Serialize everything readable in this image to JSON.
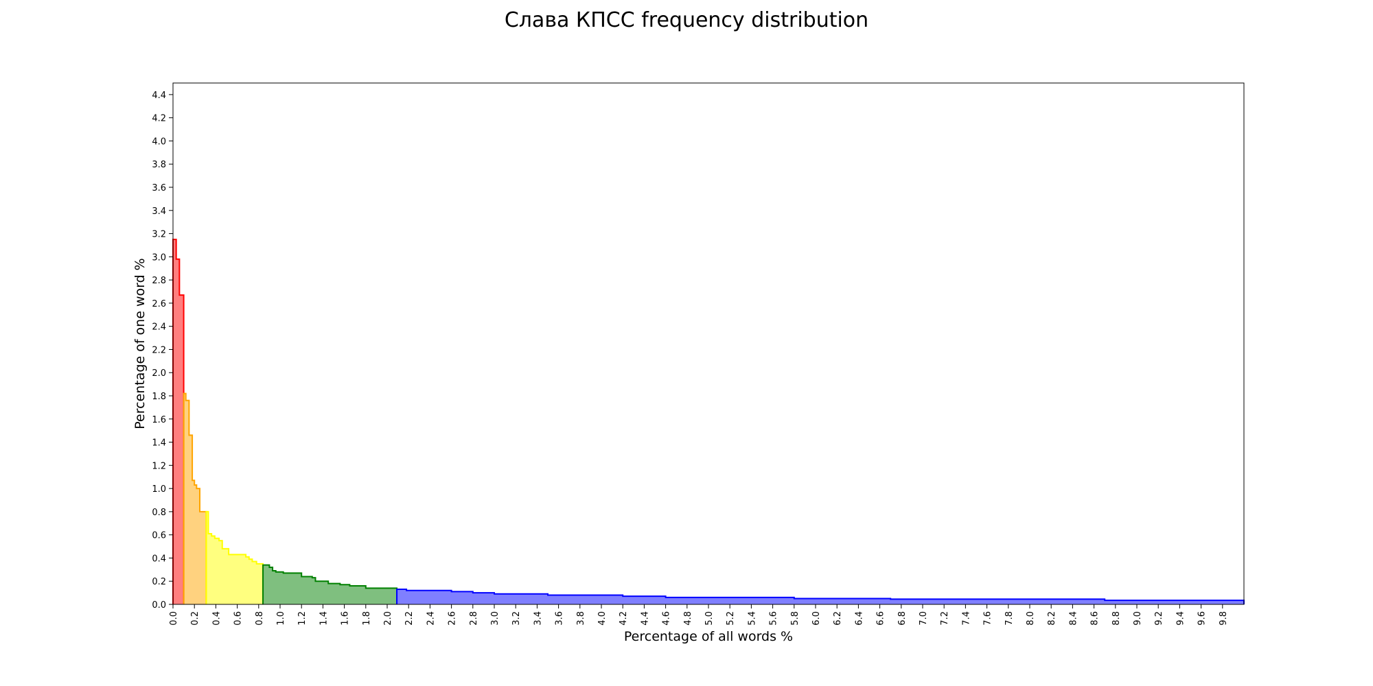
{
  "chart_data": {
    "type": "area",
    "title": "Слава КПСС frequency distribution",
    "xlabel": "Percentage of all words %",
    "ylabel": "Percentage of one word %",
    "xlim": [
      0,
      10.0
    ],
    "ylim": [
      0,
      4.5
    ],
    "x_ticks": [
      "0.0",
      "0.2",
      "0.4",
      "0.6",
      "0.8",
      "1.0",
      "1.2",
      "1.4",
      "1.6",
      "1.8",
      "2.0",
      "2.2",
      "2.4",
      "2.6",
      "2.8",
      "3.0",
      "3.2",
      "3.4",
      "3.6",
      "3.8",
      "4.0",
      "4.2",
      "4.4",
      "4.6",
      "4.8",
      "5.0",
      "5.2",
      "5.4",
      "5.6",
      "5.8",
      "6.0",
      "6.2",
      "6.4",
      "6.6",
      "6.8",
      "7.0",
      "7.2",
      "7.4",
      "7.6",
      "7.8",
      "8.0",
      "8.2",
      "8.4",
      "8.6",
      "8.8",
      "9.0",
      "9.2",
      "9.4",
      "9.6",
      "9.8"
    ],
    "y_ticks": [
      "0.0",
      "0.2",
      "0.4",
      "0.6",
      "0.8",
      "1.0",
      "1.2",
      "1.4",
      "1.6",
      "1.8",
      "2.0",
      "2.2",
      "2.4",
      "2.6",
      "2.8",
      "3.0",
      "3.2",
      "3.4",
      "3.6",
      "3.8",
      "4.0",
      "4.2",
      "4.4"
    ],
    "grid": false,
    "series": [
      {
        "color": "#ff0000",
        "x": [
          0.0,
          0.03,
          0.06,
          0.1
        ],
        "y": [
          3.15,
          2.98,
          2.67,
          2.1
        ]
      },
      {
        "color": "#ffa500",
        "x": [
          0.1,
          0.12,
          0.15,
          0.18,
          0.2,
          0.22,
          0.25
        ],
        "y": [
          1.82,
          1.76,
          1.46,
          1.07,
          1.03,
          1.0,
          0.8
        ]
      },
      {
        "color": "#ffff00",
        "x": [
          0.31,
          0.33,
          0.36,
          0.39,
          0.43,
          0.46,
          0.52,
          0.68,
          0.71,
          0.74,
          0.78
        ],
        "y": [
          0.8,
          0.61,
          0.59,
          0.57,
          0.55,
          0.48,
          0.43,
          0.41,
          0.39,
          0.37,
          0.35
        ]
      },
      {
        "color": "#008000",
        "x": [
          0.84,
          0.9,
          0.93,
          0.96,
          1.03,
          1.2,
          1.3,
          1.33,
          1.45,
          1.56,
          1.65,
          1.8
        ],
        "y": [
          0.34,
          0.32,
          0.29,
          0.28,
          0.27,
          0.24,
          0.23,
          0.2,
          0.18,
          0.17,
          0.16,
          0.14
        ]
      },
      {
        "color": "#0000ff",
        "x": [
          2.09,
          2.18,
          2.6,
          2.8,
          3.0,
          3.5,
          4.2,
          4.6,
          4.95,
          5.8,
          6.7,
          8.7
        ],
        "y": [
          0.13,
          0.12,
          0.11,
          0.1,
          0.09,
          0.08,
          0.07,
          0.06,
          0.06,
          0.05,
          0.045,
          0.035
        ]
      }
    ]
  }
}
